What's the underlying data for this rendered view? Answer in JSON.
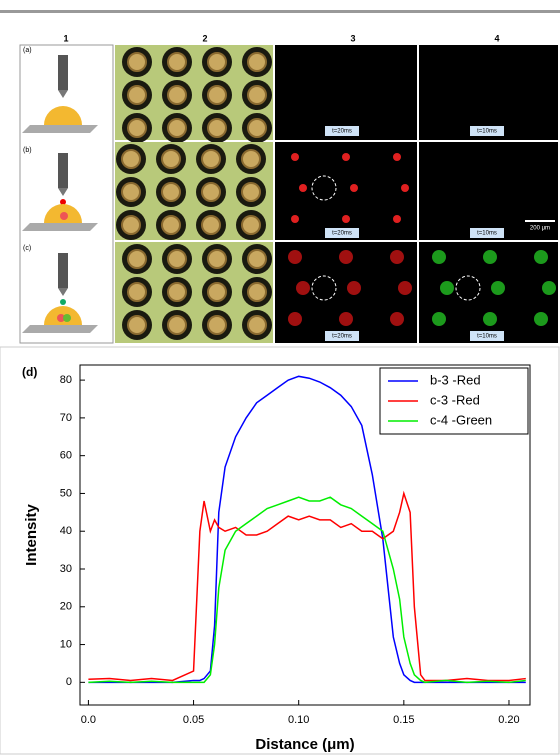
{
  "figure": {
    "column_headers": [
      "1",
      "2",
      "3",
      "4"
    ],
    "row_labels": [
      "(a)",
      "(b)",
      "(c)"
    ],
    "time_labels": {
      "a3": "t=20ms",
      "a4": "t=10ms",
      "b3": "t=20ms",
      "b4": "t=10ms",
      "c3": "t=20ms",
      "c4": "t=10ms"
    },
    "scale_bar": "200 μm"
  },
  "chart_data": {
    "type": "line",
    "label": "(d)",
    "x_label": "Distance (μm)",
    "y_label": "Intensity",
    "x": [
      0,
      0.01,
      0.02,
      0.03,
      0.04,
      0.05,
      0.053,
      0.055,
      0.058,
      0.06,
      0.062,
      0.065,
      0.07,
      0.075,
      0.08,
      0.085,
      0.09,
      0.095,
      0.1,
      0.105,
      0.11,
      0.115,
      0.12,
      0.125,
      0.13,
      0.135,
      0.14,
      0.145,
      0.148,
      0.15,
      0.153,
      0.155,
      0.158,
      0.16,
      0.17,
      0.18,
      0.19,
      0.2,
      0.208
    ],
    "series": [
      {
        "name": "b-3 -Red",
        "color": "#0000ff",
        "values": [
          0,
          0,
          0,
          0,
          0,
          0.5,
          0.5,
          1,
          3,
          15,
          45,
          57,
          65,
          70,
          74,
          76,
          78,
          80,
          81,
          80.5,
          79.5,
          78,
          76,
          73,
          68,
          55,
          38,
          12,
          5,
          2,
          0.5,
          0,
          0,
          0,
          0,
          0,
          0,
          0,
          0
        ]
      },
      {
        "name": "c-3 -Red",
        "color": "#ff0000",
        "values": [
          0.8,
          1,
          0.5,
          1,
          0.5,
          3,
          40,
          48,
          40,
          43,
          41,
          40,
          41,
          39,
          39,
          40,
          42,
          44,
          43,
          44,
          43,
          43,
          41,
          42,
          40,
          40,
          38,
          40,
          45,
          50,
          45,
          20,
          2,
          0.5,
          0.5,
          1,
          0.5,
          0.5,
          1
        ]
      },
      {
        "name": "c-4 -Green",
        "color": "#00ee00",
        "values": [
          0,
          0.3,
          0,
          0.3,
          0,
          0,
          0,
          0,
          2,
          10,
          25,
          35,
          40,
          42,
          44,
          46,
          47,
          48,
          49,
          48,
          48,
          49,
          47,
          46,
          44,
          42,
          40,
          30,
          22,
          12,
          5,
          2,
          0.5,
          0,
          0.5,
          0,
          0.3,
          0,
          0.5
        ]
      }
    ],
    "xlim": [
      -0.004,
      0.21
    ],
    "ylim": [
      -6,
      84
    ],
    "xticks": [
      {
        "value": 0,
        "label": "0.0"
      },
      0.05,
      {
        "value": 0.1,
        "label": "0.10"
      },
      0.15,
      {
        "value": 0.2,
        "label": "0.20"
      }
    ],
    "yticks": [
      0,
      10,
      20,
      30,
      40,
      50,
      60,
      70,
      80
    ],
    "legend": "upper right",
    "grid": false
  }
}
